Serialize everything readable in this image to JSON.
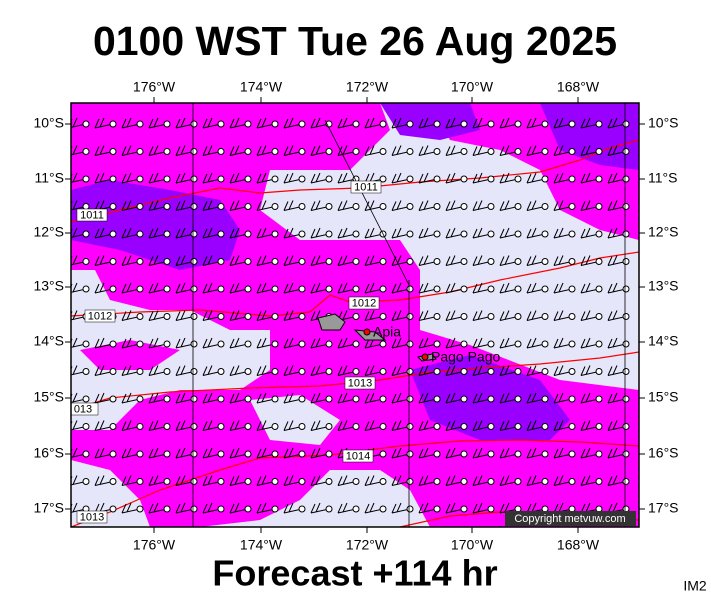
{
  "header": {
    "title": "0100 WST Tue 26 Aug 2025"
  },
  "map": {
    "lon_labels": [
      "176°W",
      "174°W",
      "172°W",
      "170°W",
      "168°W"
    ],
    "lat_labels": [
      "10°S",
      "11°S",
      "12°S",
      "13°S",
      "14°S",
      "15°S",
      "16°S",
      "17°S"
    ],
    "isobar_labels": [
      "1011",
      "1011",
      "1012",
      "1012",
      "1013",
      "013",
      "1014",
      "1013"
    ],
    "places": [
      "Apia",
      "Pago Pago"
    ],
    "copyright": "Copyright metvuw.com"
  },
  "footer": {
    "forecast": "Forecast +114 hr",
    "code": "IM2"
  }
}
